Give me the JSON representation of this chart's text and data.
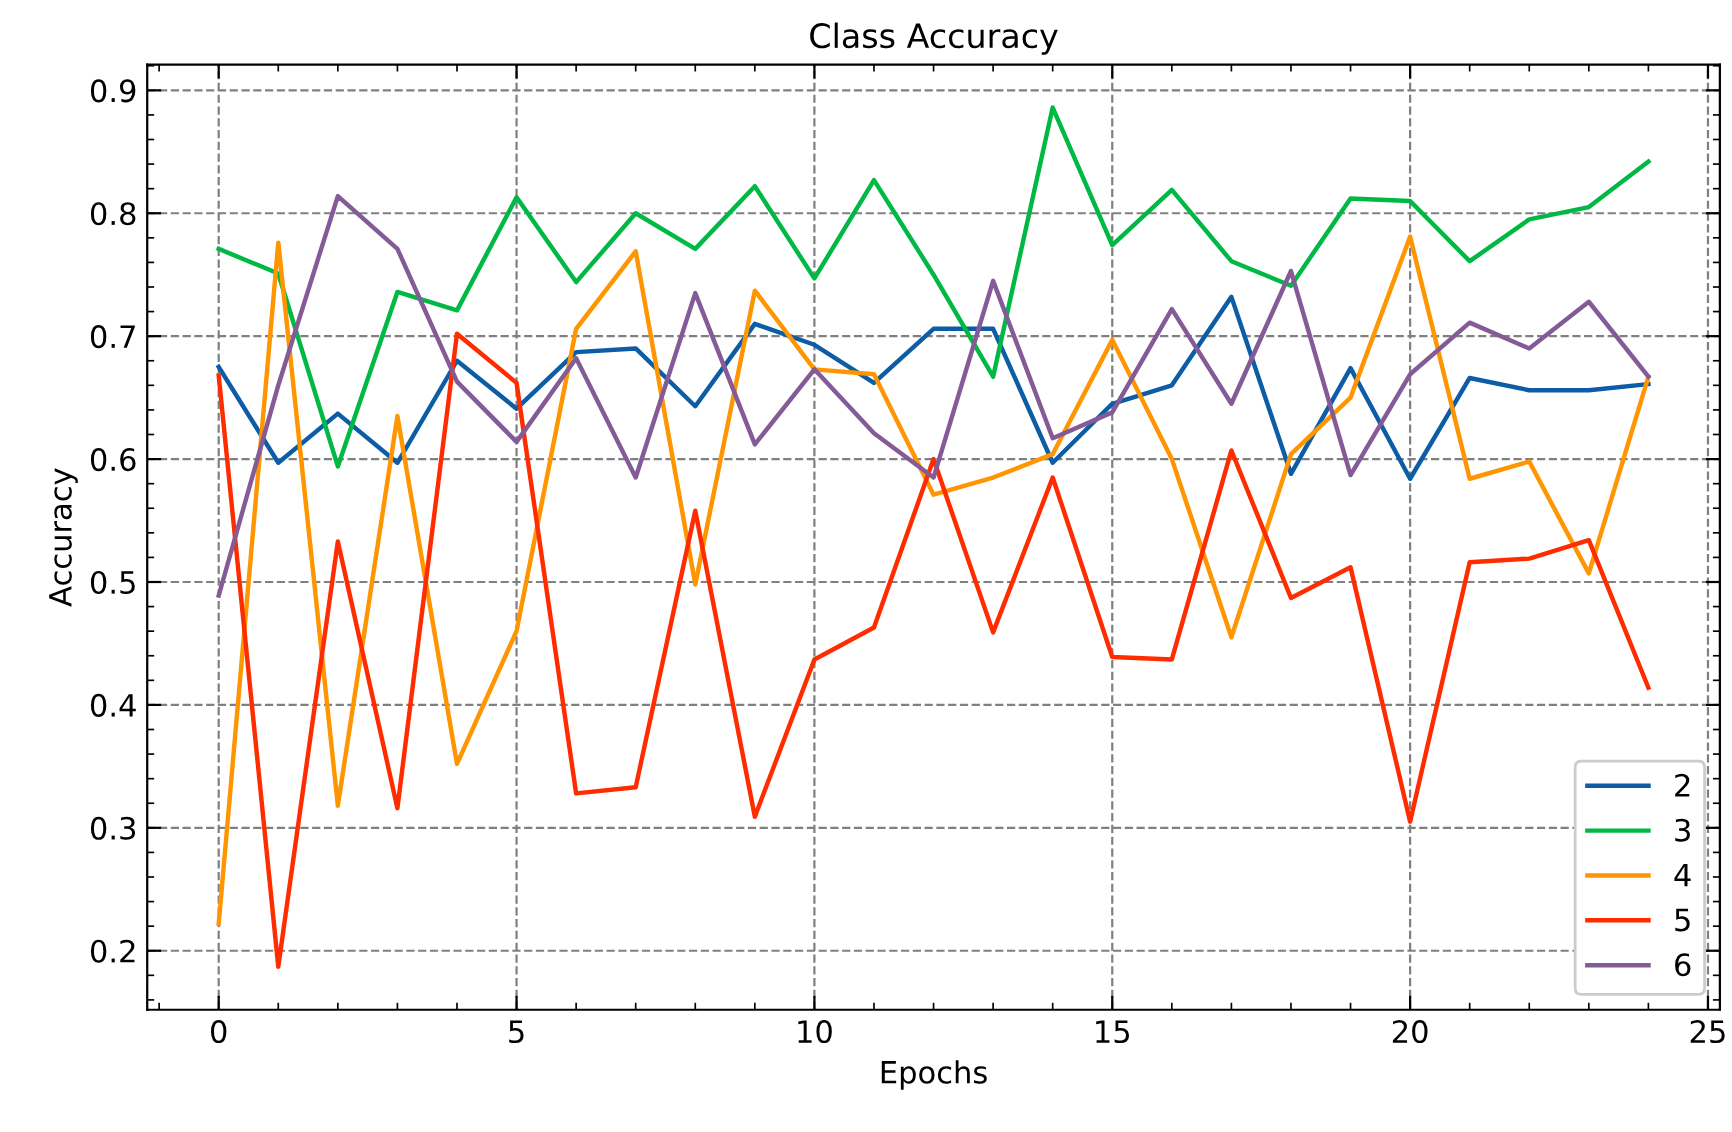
{
  "chart_data": {
    "type": "line",
    "title": "Class Accuracy",
    "xlabel": "Epochs",
    "ylabel": "Accuracy",
    "x": [
      0,
      1,
      2,
      3,
      4,
      5,
      6,
      7,
      8,
      9,
      10,
      11,
      12,
      13,
      14,
      15,
      16,
      17,
      18,
      19,
      20,
      21,
      22,
      23,
      24
    ],
    "series": [
      {
        "name": "2",
        "color": "#0c5da5",
        "values": [
          0.675,
          0.597,
          0.637,
          0.597,
          0.68,
          0.641,
          0.687,
          0.69,
          0.643,
          0.71,
          0.693,
          0.662,
          0.706,
          0.706,
          0.597,
          0.645,
          0.66,
          0.732,
          0.588,
          0.674,
          0.584,
          0.666,
          0.656,
          0.656,
          0.661
        ]
      },
      {
        "name": "3",
        "color": "#00b945",
        "values": [
          0.771,
          0.751,
          0.594,
          0.736,
          0.721,
          0.813,
          0.744,
          0.8,
          0.771,
          0.822,
          0.747,
          0.827,
          0.75,
          0.667,
          0.886,
          0.774,
          0.819,
          0.761,
          0.741,
          0.812,
          0.81,
          0.761,
          0.795,
          0.805,
          0.842
        ]
      },
      {
        "name": "4",
        "color": "#ff9500",
        "values": [
          0.222,
          0.776,
          0.318,
          0.635,
          0.352,
          0.46,
          0.706,
          0.769,
          0.498,
          0.737,
          0.673,
          0.669,
          0.571,
          0.585,
          0.604,
          0.697,
          0.6,
          0.455,
          0.604,
          0.65,
          0.781,
          0.584,
          0.598,
          0.507,
          0.667
        ]
      },
      {
        "name": "5",
        "color": "#ff2c00",
        "values": [
          0.668,
          0.187,
          0.533,
          0.316,
          0.702,
          0.662,
          0.328,
          0.333,
          0.558,
          0.309,
          0.437,
          0.463,
          0.6,
          0.459,
          0.585,
          0.439,
          0.437,
          0.607,
          0.487,
          0.512,
          0.305,
          0.516,
          0.519,
          0.534,
          0.414
        ]
      },
      {
        "name": "6",
        "color": "#845b97",
        "values": [
          0.489,
          0.66,
          0.814,
          0.771,
          0.663,
          0.614,
          0.682,
          0.585,
          0.735,
          0.612,
          0.673,
          0.621,
          0.585,
          0.745,
          0.617,
          0.638,
          0.722,
          0.645,
          0.753,
          0.587,
          0.669,
          0.711,
          0.69,
          0.728,
          0.667
        ]
      }
    ],
    "xlim": [
      -1.2,
      25.2
    ],
    "ylim": [
      0.152,
      0.921
    ],
    "xticks": [
      0,
      5,
      10,
      15,
      20,
      25
    ],
    "yticks": [
      0.2,
      0.3,
      0.4,
      0.5,
      0.6,
      0.7,
      0.8,
      0.9
    ],
    "grid": true,
    "legend": "bottom right",
    "marker": "none",
    "line_style": "solid"
  }
}
